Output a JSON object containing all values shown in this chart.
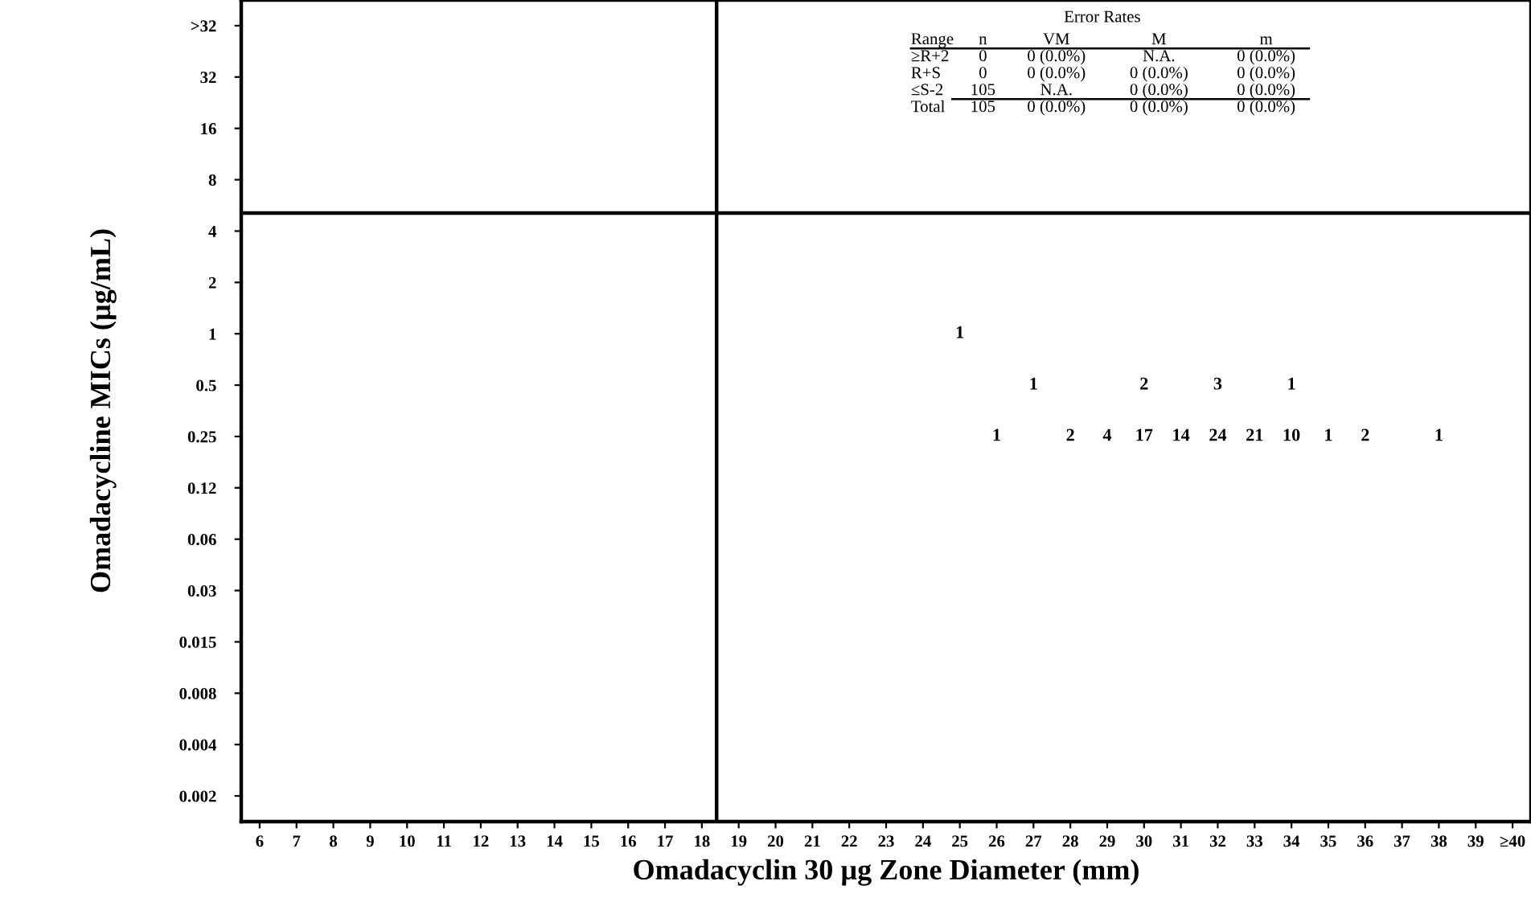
{
  "chart_data": {
    "type": "heatmap",
    "xlabel": "Omadacyclin 30 µg Zone Diameter (mm)",
    "ylabel": "Omadacycline MICs (µg/mL)",
    "categories": [
      "6",
      "7",
      "8",
      "9",
      "10",
      "11",
      "12",
      "13",
      "14",
      "15",
      "16",
      "17",
      "18",
      "19",
      "20",
      "21",
      "22",
      "23",
      "24",
      "25",
      "26",
      "27",
      "28",
      "29",
      "30",
      "31",
      "32",
      "33",
      "34",
      "35",
      "36",
      "37",
      "38",
      "39",
      "≥40"
    ],
    "y_categories": [
      ">32",
      "32",
      "16",
      "8",
      "4",
      "2",
      "1",
      "0.5",
      "0.25",
      "0.12",
      "0.06",
      "0.03",
      "0.015",
      "0.008",
      "0.004",
      "0.002"
    ],
    "cells": [
      [
        null,
        null,
        null,
        null,
        null,
        null,
        null,
        null,
        null,
        null,
        null,
        null,
        null,
        null,
        null,
        null,
        null,
        null,
        null,
        null,
        null,
        null,
        null,
        null,
        null,
        null,
        null,
        null,
        null,
        null,
        null,
        null,
        null,
        null,
        null
      ],
      [
        null,
        null,
        null,
        null,
        null,
        null,
        null,
        null,
        null,
        null,
        null,
        null,
        null,
        null,
        null,
        null,
        null,
        null,
        null,
        null,
        null,
        null,
        null,
        null,
        null,
        null,
        null,
        null,
        null,
        null,
        null,
        null,
        null,
        null,
        null
      ],
      [
        null,
        null,
        null,
        null,
        null,
        null,
        null,
        null,
        null,
        null,
        null,
        null,
        null,
        null,
        null,
        null,
        null,
        null,
        null,
        null,
        null,
        null,
        null,
        null,
        null,
        null,
        null,
        null,
        null,
        null,
        null,
        null,
        null,
        null,
        null
      ],
      [
        null,
        null,
        null,
        null,
        null,
        null,
        null,
        null,
        null,
        null,
        null,
        null,
        null,
        null,
        null,
        null,
        null,
        null,
        null,
        null,
        null,
        null,
        null,
        null,
        null,
        null,
        null,
        null,
        null,
        null,
        null,
        null,
        null,
        null,
        null
      ],
      [
        null,
        null,
        null,
        null,
        null,
        null,
        null,
        null,
        null,
        null,
        null,
        null,
        null,
        null,
        null,
        null,
        null,
        null,
        null,
        null,
        null,
        null,
        null,
        null,
        null,
        null,
        null,
        null,
        null,
        null,
        null,
        null,
        null,
        null,
        null
      ],
      [
        null,
        null,
        null,
        null,
        null,
        null,
        null,
        null,
        null,
        null,
        null,
        null,
        null,
        null,
        null,
        null,
        null,
        null,
        null,
        null,
        null,
        null,
        null,
        null,
        null,
        null,
        null,
        null,
        null,
        null,
        null,
        null,
        null,
        null,
        null
      ],
      [
        null,
        null,
        null,
        null,
        null,
        null,
        null,
        null,
        null,
        null,
        null,
        null,
        null,
        null,
        null,
        null,
        null,
        null,
        null,
        1,
        null,
        null,
        null,
        null,
        null,
        null,
        null,
        null,
        null,
        null,
        null,
        null,
        null,
        null,
        null
      ],
      [
        null,
        null,
        null,
        null,
        null,
        null,
        null,
        null,
        null,
        null,
        null,
        null,
        null,
        null,
        null,
        null,
        null,
        null,
        null,
        null,
        null,
        1,
        null,
        null,
        2,
        null,
        3,
        null,
        1,
        null,
        null,
        null,
        null,
        null,
        null
      ],
      [
        null,
        null,
        null,
        null,
        null,
        null,
        null,
        null,
        null,
        null,
        null,
        null,
        null,
        null,
        null,
        null,
        null,
        null,
        null,
        null,
        1,
        null,
        2,
        4,
        17,
        14,
        24,
        21,
        10,
        1,
        2,
        null,
        1,
        null,
        null
      ],
      [
        null,
        null,
        null,
        null,
        null,
        null,
        null,
        null,
        null,
        null,
        null,
        null,
        null,
        null,
        null,
        null,
        null,
        null,
        null,
        null,
        null,
        null,
        null,
        null,
        null,
        null,
        null,
        null,
        null,
        null,
        null,
        null,
        null,
        null,
        null
      ],
      [
        null,
        null,
        null,
        null,
        null,
        null,
        null,
        null,
        null,
        null,
        null,
        null,
        null,
        null,
        null,
        null,
        null,
        null,
        null,
        null,
        null,
        null,
        null,
        null,
        null,
        null,
        null,
        null,
        null,
        null,
        null,
        null,
        null,
        null,
        null
      ],
      [
        null,
        null,
        null,
        null,
        null,
        null,
        null,
        null,
        null,
        null,
        null,
        null,
        null,
        null,
        null,
        null,
        null,
        null,
        null,
        null,
        null,
        null,
        null,
        null,
        null,
        null,
        null,
        null,
        null,
        null,
        null,
        null,
        null,
        null,
        null
      ],
      [
        null,
        null,
        null,
        null,
        null,
        null,
        null,
        null,
        null,
        null,
        null,
        null,
        null,
        null,
        null,
        null,
        null,
        null,
        null,
        null,
        null,
        null,
        null,
        null,
        null,
        null,
        null,
        null,
        null,
        null,
        null,
        null,
        null,
        null,
        null
      ],
      [
        null,
        null,
        null,
        null,
        null,
        null,
        null,
        null,
        null,
        null,
        null,
        null,
        null,
        null,
        null,
        null,
        null,
        null,
        null,
        null,
        null,
        null,
        null,
        null,
        null,
        null,
        null,
        null,
        null,
        null,
        null,
        null,
        null,
        null,
        null
      ],
      [
        null,
        null,
        null,
        null,
        null,
        null,
        null,
        null,
        null,
        null,
        null,
        null,
        null,
        null,
        null,
        null,
        null,
        null,
        null,
        null,
        null,
        null,
        null,
        null,
        null,
        null,
        null,
        null,
        null,
        null,
        null,
        null,
        null,
        null,
        null
      ],
      [
        null,
        null,
        null,
        null,
        null,
        null,
        null,
        null,
        null,
        null,
        null,
        null,
        null,
        null,
        null,
        null,
        null,
        null,
        null,
        null,
        null,
        null,
        null,
        null,
        null,
        null,
        null,
        null,
        null,
        null,
        null,
        null,
        null,
        null,
        null
      ]
    ],
    "data_labels": true,
    "grid": false,
    "annotations": [
      "Error Rates",
      "Range  n  VM  M  m",
      "≥R+2  0  0 (0.0%)  N.A.  0 (0.0%)",
      "R+S  0  0 (0.0%)  0 (0.0%)  0 (0.0%)",
      "≤S-2  105  N.A.  0 (0.0%)  0 (0.0%)",
      "Total  105  0 (0.0%)  0 (0.0%)  0 (0.0%)"
    ]
  }
}
